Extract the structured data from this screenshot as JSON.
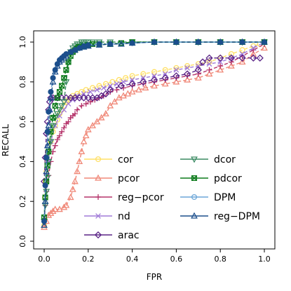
{
  "chart_data": {
    "type": "line",
    "xlabel": "FPR",
    "ylabel": "RECALL",
    "xlim": [
      0,
      1
    ],
    "ylim": [
      0,
      1
    ],
    "xticks": [
      "0.0",
      "0.2",
      "0.4",
      "0.6",
      "0.8",
      "1.0"
    ],
    "yticks": [
      "0.0",
      "0.2",
      "0.4",
      "0.6",
      "0.8",
      "1.0"
    ],
    "grid": false,
    "legend": {
      "placement": "bottom-right",
      "columns": 2
    },
    "series": [
      {
        "name": "cor",
        "color": "#ffe066",
        "marker": "circle",
        "x": [
          0,
          0.003,
          0.006,
          0.01,
          0.014,
          0.02,
          0.03,
          0.04,
          0.05,
          0.06,
          0.07,
          0.08,
          0.09,
          0.1,
          0.11,
          0.12,
          0.13,
          0.15,
          0.17,
          0.19,
          0.22,
          0.25,
          0.28,
          0.31,
          0.34,
          0.37,
          0.4,
          0.45,
          0.5,
          0.55,
          0.6,
          0.65,
          0.7,
          0.75,
          0.8,
          0.85,
          0.9,
          0.95,
          0.98
        ],
        "y": [
          0.08,
          0.22,
          0.3,
          0.35,
          0.4,
          0.45,
          0.5,
          0.55,
          0.58,
          0.61,
          0.64,
          0.66,
          0.68,
          0.7,
          0.71,
          0.72,
          0.73,
          0.74,
          0.75,
          0.76,
          0.77,
          0.78,
          0.79,
          0.8,
          0.81,
          0.82,
          0.83,
          0.84,
          0.85,
          0.86,
          0.87,
          0.88,
          0.89,
          0.9,
          0.92,
          0.94,
          0.96,
          0.98,
          0.99
        ]
      },
      {
        "name": "pcor",
        "color": "#f08878",
        "marker": "triangle-up",
        "x": [
          0,
          0.01,
          0.02,
          0.03,
          0.04,
          0.05,
          0.07,
          0.09,
          0.1,
          0.12,
          0.13,
          0.14,
          0.15,
          0.16,
          0.17,
          0.18,
          0.19,
          0.2,
          0.22,
          0.24,
          0.26,
          0.28,
          0.3,
          0.32,
          0.34,
          0.36,
          0.38,
          0.4,
          0.43,
          0.46,
          0.5,
          0.55,
          0.6,
          0.65,
          0.7,
          0.75,
          0.8,
          0.85,
          0.9,
          0.95,
          1.0
        ],
        "y": [
          0.07,
          0.1,
          0.13,
          0.14,
          0.15,
          0.16,
          0.16,
          0.17,
          0.18,
          0.22,
          0.26,
          0.3,
          0.35,
          0.4,
          0.45,
          0.5,
          0.53,
          0.56,
          0.58,
          0.6,
          0.62,
          0.64,
          0.68,
          0.7,
          0.72,
          0.73,
          0.74,
          0.75,
          0.76,
          0.77,
          0.78,
          0.79,
          0.8,
          0.81,
          0.82,
          0.84,
          0.86,
          0.88,
          0.9,
          0.94,
          0.97
        ]
      },
      {
        "name": "reg−pcor",
        "color": "#b5336a",
        "marker": "plus",
        "x": [
          0,
          0.005,
          0.01,
          0.02,
          0.03,
          0.04,
          0.05,
          0.06,
          0.07,
          0.08,
          0.09,
          0.1,
          0.11,
          0.12,
          0.13,
          0.14,
          0.15,
          0.17,
          0.19,
          0.21,
          0.23,
          0.25,
          0.27,
          0.3,
          0.33,
          0.36,
          0.4,
          0.45,
          0.5,
          0.55,
          0.6,
          0.65,
          0.7,
          0.75,
          0.8,
          0.85,
          0.9,
          0.95,
          1.0
        ],
        "y": [
          0.1,
          0.18,
          0.25,
          0.33,
          0.4,
          0.45,
          0.48,
          0.51,
          0.53,
          0.55,
          0.57,
          0.59,
          0.6,
          0.62,
          0.63,
          0.64,
          0.66,
          0.68,
          0.69,
          0.7,
          0.71,
          0.72,
          0.73,
          0.75,
          0.76,
          0.77,
          0.78,
          0.79,
          0.8,
          0.81,
          0.82,
          0.83,
          0.84,
          0.86,
          0.88,
          0.9,
          0.93,
          0.96,
          0.99
        ]
      },
      {
        "name": "nd",
        "color": "#a07ad8",
        "marker": "cross",
        "x": [
          0,
          0.005,
          0.01,
          0.02,
          0.03,
          0.05,
          0.07,
          0.09,
          0.11,
          0.13,
          0.15,
          0.18,
          0.21,
          0.24,
          0.27,
          0.3,
          0.33,
          0.36,
          0.4,
          0.45,
          0.5,
          0.55,
          0.6,
          0.65,
          0.7,
          0.75,
          0.8,
          0.85,
          0.9,
          0.95,
          1.0
        ],
        "y": [
          0.12,
          0.22,
          0.3,
          0.4,
          0.5,
          0.58,
          0.63,
          0.66,
          0.69,
          0.71,
          0.73,
          0.74,
          0.75,
          0.76,
          0.77,
          0.78,
          0.79,
          0.8,
          0.81,
          0.82,
          0.83,
          0.84,
          0.86,
          0.87,
          0.88,
          0.89,
          0.9,
          0.92,
          0.94,
          0.97,
          1.0
        ]
      },
      {
        "name": "arac",
        "color": "#5a2386",
        "marker": "diamond",
        "x": [
          0,
          0.005,
          0.01,
          0.015,
          0.02,
          0.025,
          0.03,
          0.04,
          0.06,
          0.08,
          0.1,
          0.12,
          0.14,
          0.16,
          0.18,
          0.2,
          0.22,
          0.24,
          0.26,
          0.28,
          0.3,
          0.35,
          0.4,
          0.45,
          0.5,
          0.55,
          0.6,
          0.65,
          0.7,
          0.72,
          0.75,
          0.8,
          0.85,
          0.9,
          0.95,
          0.98
        ],
        "y": [
          0.3,
          0.42,
          0.54,
          0.6,
          0.66,
          0.7,
          0.72,
          0.72,
          0.72,
          0.72,
          0.72,
          0.72,
          0.72,
          0.72,
          0.72,
          0.72,
          0.72,
          0.72,
          0.73,
          0.74,
          0.76,
          0.78,
          0.79,
          0.8,
          0.81,
          0.82,
          0.83,
          0.84,
          0.86,
          0.9,
          0.92,
          0.92,
          0.92,
          0.92,
          0.92,
          0.92
        ]
      },
      {
        "name": "dcor",
        "color": "#3a8a62",
        "marker": "triangle-down",
        "x": [
          0,
          0.005,
          0.01,
          0.015,
          0.02,
          0.03,
          0.04,
          0.05,
          0.06,
          0.07,
          0.08,
          0.09,
          0.1,
          0.11,
          0.12,
          0.13,
          0.14,
          0.15,
          0.16,
          0.17,
          0.18,
          0.19,
          0.2,
          0.22,
          0.25,
          0.3,
          0.4,
          0.5,
          0.6,
          0.7,
          0.8,
          0.9,
          1.0
        ],
        "y": [
          0.1,
          0.18,
          0.25,
          0.32,
          0.4,
          0.5,
          0.58,
          0.62,
          0.64,
          0.66,
          0.68,
          0.7,
          0.8,
          0.9,
          0.95,
          0.97,
          0.98,
          0.99,
          0.99,
          1.0,
          1.0,
          1.0,
          1.0,
          1.0,
          1.0,
          1.0,
          1.0,
          1.0,
          1.0,
          1.0,
          1.0,
          1.0,
          1.0
        ]
      },
      {
        "name": "pdcor",
        "color": "#0b7a1a",
        "marker": "square-x",
        "x": [
          0,
          0.005,
          0.01,
          0.015,
          0.02,
          0.03,
          0.04,
          0.05,
          0.06,
          0.07,
          0.08,
          0.09,
          0.1,
          0.11,
          0.12,
          0.13,
          0.14,
          0.15,
          0.16,
          0.18,
          0.2,
          0.22,
          0.25,
          0.3,
          0.35,
          0.4,
          0.5,
          0.6,
          0.7,
          0.8,
          0.9,
          1.0
        ],
        "y": [
          0.12,
          0.22,
          0.3,
          0.38,
          0.45,
          0.55,
          0.62,
          0.68,
          0.72,
          0.75,
          0.78,
          0.82,
          0.86,
          0.9,
          0.93,
          0.95,
          0.96,
          0.97,
          0.975,
          0.98,
          0.985,
          0.99,
          0.99,
          0.99,
          0.995,
          1.0,
          1.0,
          1.0,
          1.0,
          1.0,
          1.0,
          1.0
        ]
      },
      {
        "name": "DPM",
        "color": "#6ba6d8",
        "marker": "circle",
        "x": [
          0,
          0.005,
          0.01,
          0.015,
          0.02,
          0.03,
          0.04,
          0.05,
          0.06,
          0.07,
          0.08,
          0.09,
          0.1,
          0.12,
          0.14,
          0.16,
          0.18,
          0.2,
          0.25,
          0.3,
          0.4,
          0.5,
          0.6,
          0.7,
          0.8,
          0.9,
          1.0
        ],
        "y": [
          0.1,
          0.28,
          0.42,
          0.55,
          0.65,
          0.75,
          0.82,
          0.86,
          0.89,
          0.91,
          0.92,
          0.93,
          0.94,
          0.95,
          0.96,
          0.97,
          0.98,
          0.985,
          0.99,
          0.99,
          0.995,
          1.0,
          1.0,
          1.0,
          1.0,
          1.0,
          1.0
        ]
      },
      {
        "name": "reg−DPM",
        "color": "#1c4f8c",
        "marker": "triangle-up",
        "x": [
          0,
          0.005,
          0.01,
          0.015,
          0.02,
          0.025,
          0.03,
          0.04,
          0.05,
          0.06,
          0.07,
          0.08,
          0.09,
          0.1,
          0.12,
          0.14,
          0.16,
          0.18,
          0.2,
          0.25,
          0.3,
          0.35,
          0.4,
          0.5,
          0.6,
          0.7,
          0.8,
          0.9,
          1.0
        ],
        "y": [
          0.08,
          0.2,
          0.35,
          0.48,
          0.58,
          0.66,
          0.72,
          0.8,
          0.85,
          0.88,
          0.9,
          0.91,
          0.92,
          0.93,
          0.95,
          0.96,
          0.97,
          0.975,
          0.98,
          0.985,
          0.99,
          0.99,
          0.995,
          1.0,
          1.0,
          1.0,
          1.0,
          1.0,
          1.0
        ]
      }
    ]
  }
}
